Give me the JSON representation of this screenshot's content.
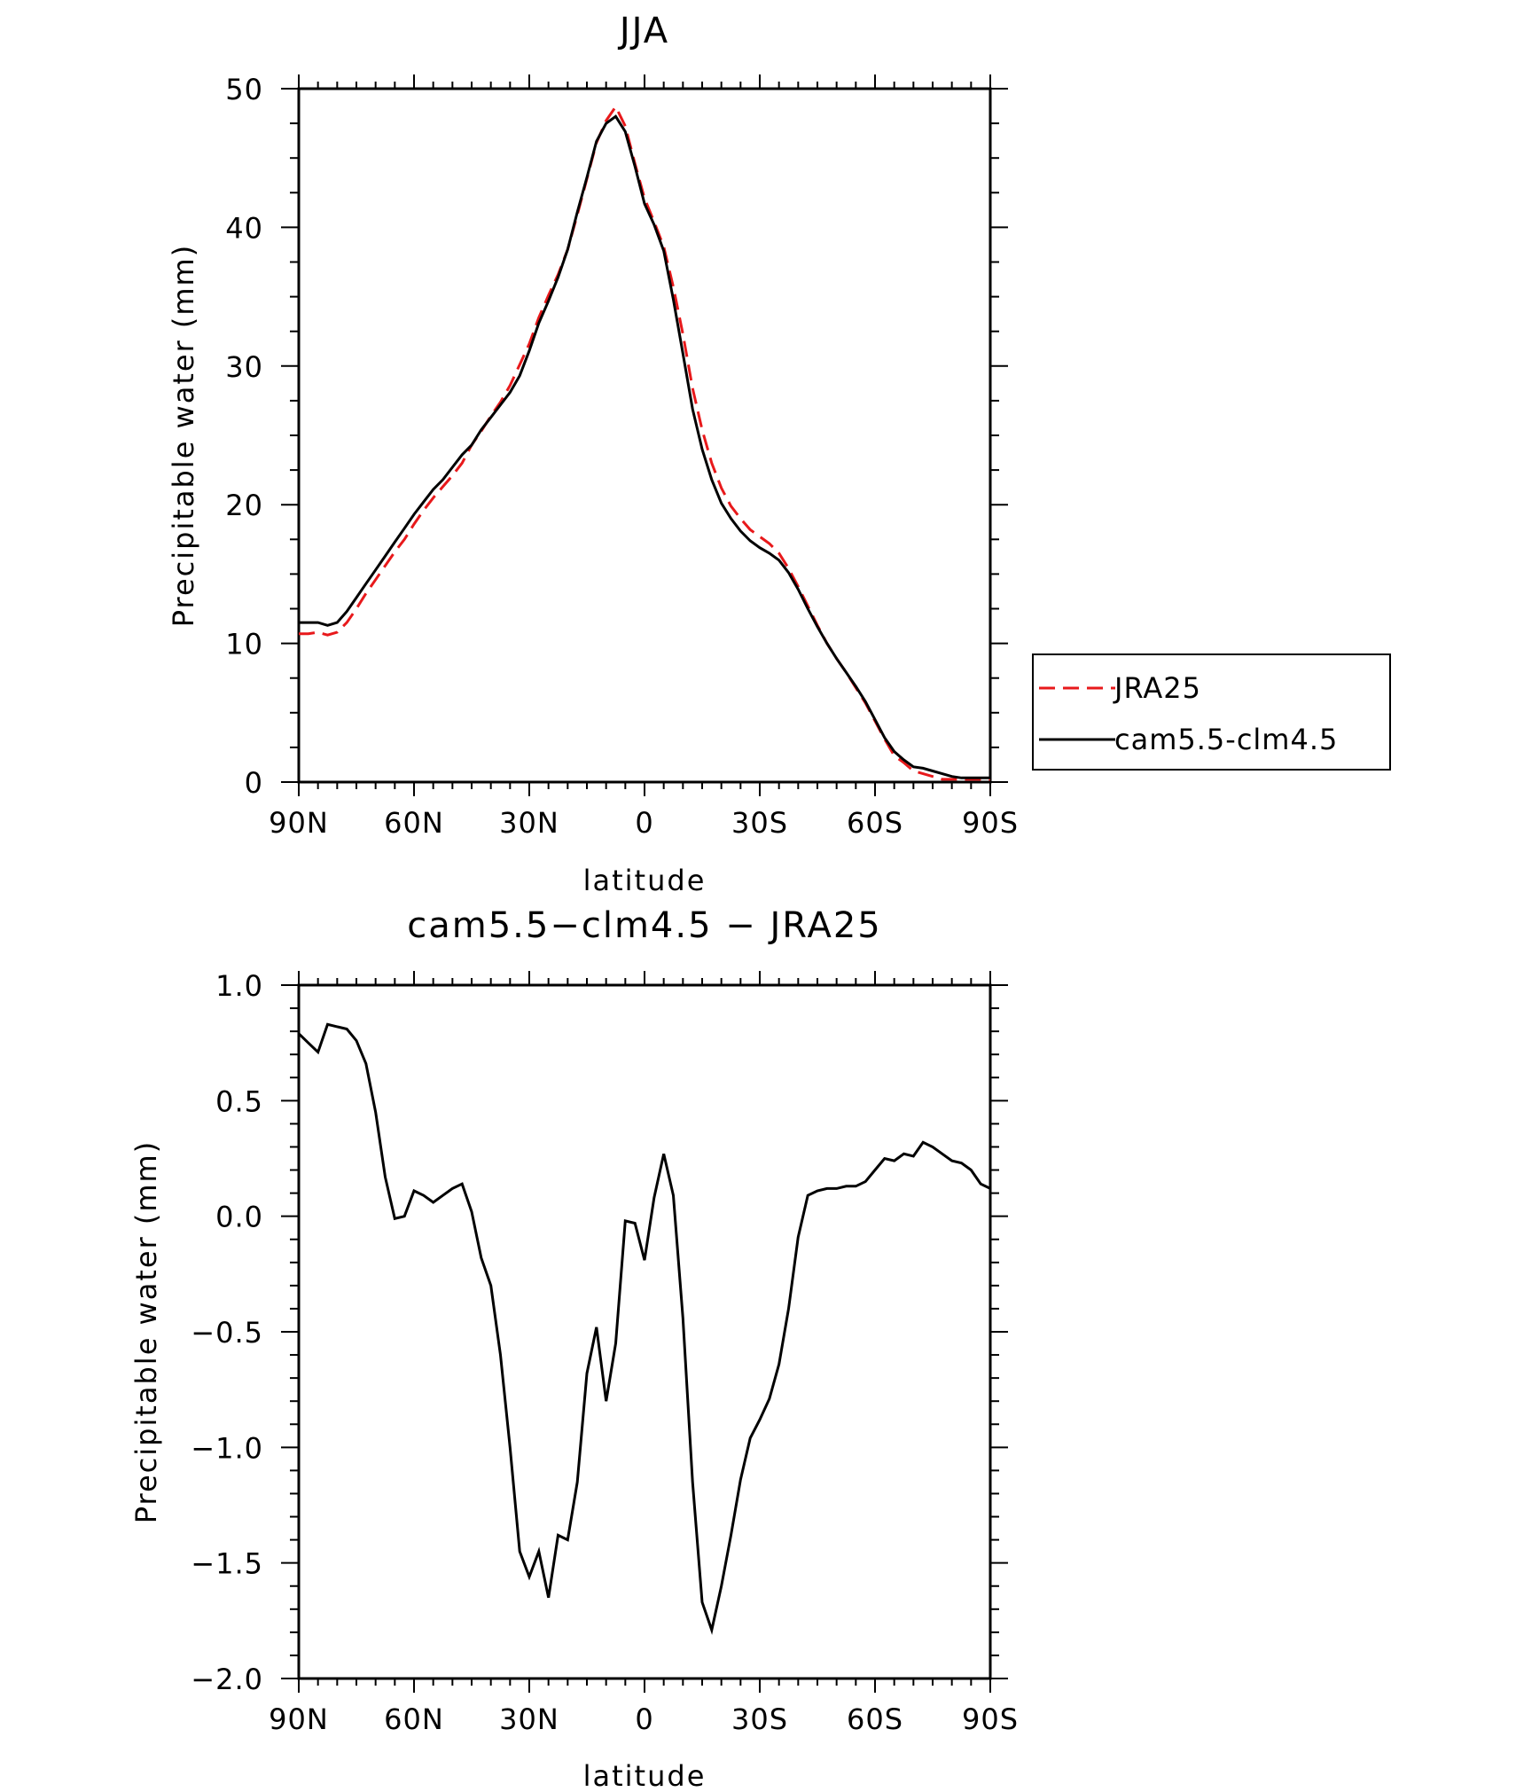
{
  "colors": {
    "jra": "#e8191b",
    "model": "#000000",
    "frame": "#000000"
  },
  "chart_data": [
    {
      "type": "line",
      "title": "JJA",
      "xlabel": "latitude",
      "ylabel": "Precipitable water (mm)",
      "xlim": [
        90,
        -90
      ],
      "ylim": [
        0,
        50
      ],
      "xticks": [
        90,
        60,
        30,
        0,
        -30,
        -60,
        -90
      ],
      "xtick_labels": [
        "90N",
        "60N",
        "30N",
        "0",
        "30S",
        "60S",
        "90S"
      ],
      "yticks": [
        0,
        10,
        20,
        30,
        40,
        50
      ],
      "ytick_labels": [
        "0",
        "10",
        "20",
        "30",
        "40",
        "50"
      ],
      "legend": {
        "placement": "right"
      },
      "series": [
        {
          "name": "JRA25",
          "style": "dashed",
          "color": "#e8191b",
          "x": [
            90,
            87.5,
            85,
            82.5,
            80,
            77.5,
            75,
            72.5,
            70,
            67.5,
            65,
            62.5,
            60,
            57.5,
            55,
            52.5,
            50,
            47.5,
            45,
            42.5,
            40,
            37.5,
            35,
            32.5,
            30,
            27.5,
            25,
            22.5,
            20,
            17.5,
            15,
            12.5,
            10,
            7.5,
            5,
            2.5,
            0,
            -2.5,
            -5,
            -7.5,
            -10,
            -12.5,
            -15,
            -17.5,
            -20,
            -22.5,
            -25,
            -27.5,
            -30,
            -32.5,
            -35,
            -37.5,
            -40,
            -42.5,
            -45,
            -47.5,
            -50,
            -52.5,
            -55,
            -57.5,
            -60,
            -62.5,
            -65,
            -67.5,
            -70,
            -72.5,
            -75,
            -77.5,
            -80,
            -82.5,
            -85,
            -87.5,
            -90
          ],
          "y": [
            10.7,
            10.7,
            10.8,
            10.6,
            10.8,
            11.5,
            12.5,
            13.6,
            14.6,
            15.6,
            16.6,
            17.5,
            18.6,
            19.6,
            20.5,
            21.3,
            22.1,
            23.0,
            24.3,
            25.3,
            26.4,
            27.4,
            28.6,
            30.1,
            31.6,
            33.5,
            35.1,
            36.6,
            38.4,
            40.9,
            43.5,
            46.1,
            47.7,
            48.7,
            47.3,
            44.6,
            42.1,
            40.4,
            38.6,
            35.7,
            32.3,
            28.4,
            25.4,
            23.0,
            21.2,
            19.9,
            19.0,
            18.2,
            17.7,
            17.2,
            16.5,
            15.4,
            14.1,
            12.7,
            11.3,
            10.0,
            8.9,
            7.9,
            6.8,
            5.7,
            4.4,
            3.1,
            1.9,
            1.4,
            0.8,
            0.6,
            0.4,
            0.2,
            0.2,
            0.2,
            0.2,
            0.2,
            0.2
          ]
        },
        {
          "name": "cam5.5-clm4.5",
          "style": "solid",
          "color": "#000000",
          "x": [
            90,
            87.5,
            85,
            82.5,
            80,
            77.5,
            75,
            72.5,
            70,
            67.5,
            65,
            62.5,
            60,
            57.5,
            55,
            52.5,
            50,
            47.5,
            45,
            42.5,
            40,
            37.5,
            35,
            32.5,
            30,
            27.5,
            25,
            22.5,
            20,
            17.5,
            15,
            12.5,
            10,
            7.5,
            5,
            2.5,
            0,
            -2.5,
            -5,
            -7.5,
            -10,
            -12.5,
            -15,
            -17.5,
            -20,
            -22.5,
            -25,
            -27.5,
            -30,
            -32.5,
            -35,
            -37.5,
            -40,
            -42.5,
            -45,
            -47.5,
            -50,
            -52.5,
            -55,
            -57.5,
            -60,
            -62.5,
            -65,
            -67.5,
            -70,
            -72.5,
            -75,
            -77.5,
            -80,
            -82.5,
            -85,
            -87.5,
            -90
          ],
          "y": [
            11.5,
            11.5,
            11.5,
            11.3,
            11.5,
            12.3,
            13.3,
            14.3,
            15.3,
            16.3,
            17.3,
            18.3,
            19.3,
            20.2,
            21.1,
            21.8,
            22.7,
            23.6,
            24.3,
            25.4,
            26.3,
            27.2,
            28.1,
            29.3,
            31.1,
            33.1,
            34.7,
            36.4,
            38.4,
            41.1,
            43.6,
            46.2,
            47.5,
            48.0,
            46.9,
            44.4,
            41.7,
            40.2,
            38.3,
            34.8,
            30.9,
            26.9,
            24.0,
            21.8,
            20.1,
            19.0,
            18.1,
            17.4,
            16.9,
            16.5,
            16.0,
            15.1,
            13.9,
            12.5,
            11.2,
            10.0,
            8.9,
            7.9,
            6.9,
            5.8,
            4.5,
            3.2,
            2.2,
            1.6,
            1.1,
            1.0,
            0.8,
            0.6,
            0.4,
            0.3,
            0.3,
            0.3,
            0.3
          ]
        }
      ]
    },
    {
      "type": "line",
      "title": "cam5.5−clm4.5 − JRA25",
      "xlabel": "latitude",
      "ylabel": "Precipitable water (mm)",
      "xlim": [
        90,
        -90
      ],
      "ylim": [
        -2.0,
        1.0
      ],
      "xticks": [
        90,
        60,
        30,
        0,
        -30,
        -60,
        -90
      ],
      "xtick_labels": [
        "90N",
        "60N",
        "30N",
        "0",
        "30S",
        "60S",
        "90S"
      ],
      "yticks": [
        1.0,
        0.5,
        0.0,
        -0.5,
        -1.0,
        -1.5,
        -2.0
      ],
      "ytick_labels": [
        "1.0",
        "0.5",
        "0.0",
        "−0.5",
        "−1.0",
        "−1.5",
        "−2.0"
      ],
      "series": [
        {
          "style": "solid",
          "color": "#000000",
          "x": [
            90,
            87.5,
            85,
            82.5,
            80,
            77.5,
            75,
            72.5,
            70,
            67.5,
            65,
            62.5,
            60,
            57.5,
            55,
            52.5,
            50,
            47.5,
            45,
            42.5,
            40,
            37.5,
            35,
            32.5,
            30,
            27.5,
            25,
            22.5,
            20,
            17.5,
            15,
            12.5,
            10,
            7.5,
            5,
            2.5,
            0,
            -2.5,
            -5,
            -7.5,
            -10,
            -12.5,
            -15,
            -17.5,
            -20,
            -22.5,
            -25,
            -27.5,
            -30,
            -32.5,
            -35,
            -37.5,
            -40,
            -42.5,
            -45,
            -47.5,
            -50,
            -52.5,
            -55,
            -57.5,
            -60,
            -62.5,
            -65,
            -67.5,
            -70,
            -72.5,
            -75,
            -77.5,
            -80,
            -82.5,
            -85,
            -87.5,
            -90
          ],
          "y": [
            0.79,
            0.75,
            0.71,
            0.83,
            0.82,
            0.81,
            0.76,
            0.66,
            0.45,
            0.17,
            -0.01,
            0.0,
            0.11,
            0.09,
            0.06,
            0.09,
            0.12,
            0.14,
            0.02,
            -0.18,
            -0.3,
            -0.6,
            -1.0,
            -1.45,
            -1.56,
            -1.45,
            -1.65,
            -1.38,
            -1.4,
            -1.15,
            -0.68,
            -0.48,
            -0.8,
            -0.55,
            -0.02,
            -0.03,
            -0.19,
            0.08,
            0.27,
            0.09,
            -0.44,
            -1.15,
            -1.67,
            -1.79,
            -1.6,
            -1.38,
            -1.14,
            -0.96,
            -0.88,
            -0.79,
            -0.64,
            -0.4,
            -0.09,
            0.09,
            0.11,
            0.12,
            0.12,
            0.13,
            0.13,
            0.15,
            0.2,
            0.25,
            0.24,
            0.27,
            0.26,
            0.32,
            0.3,
            0.27,
            0.24,
            0.23,
            0.2,
            0.14,
            0.12
          ]
        }
      ]
    }
  ]
}
